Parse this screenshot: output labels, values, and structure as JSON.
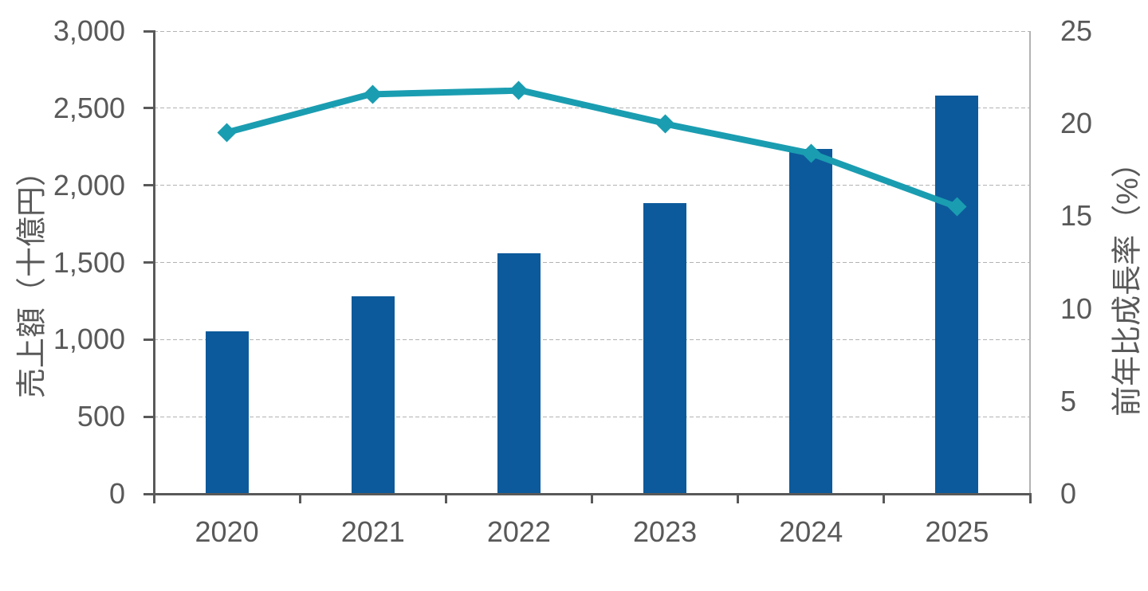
{
  "chart_data": {
    "type": "combo-bar-line",
    "title": "",
    "legend": "none",
    "background_color": "#FFFFFF",
    "categories": [
      "2020",
      "2021",
      "2022",
      "2023",
      "2024",
      "2025"
    ],
    "series": [
      {
        "name": "売上額",
        "type": "bar",
        "axis": "left",
        "color": "#0C5A9B",
        "values": [
          1055,
          1280,
          1560,
          1885,
          2235,
          2580
        ]
      },
      {
        "name": "前年比成長率",
        "type": "line",
        "axis": "right",
        "color": "#1A9DB1",
        "marker": "diamond",
        "values": [
          19.5,
          21.6,
          21.8,
          20.0,
          18.4,
          15.5
        ]
      }
    ],
    "left_axis": {
      "label": "売上額（十億円）",
      "min": 0,
      "max": 3000,
      "step": 500,
      "tick_labels": [
        "0",
        "500",
        "1,000",
        "1,500",
        "2,000",
        "2,500",
        "3,000"
      ]
    },
    "right_axis": {
      "label": "前年比成長率（%）",
      "min": 0,
      "max": 25,
      "step": 5,
      "tick_labels": [
        "0",
        "5",
        "10",
        "15",
        "20",
        "25"
      ]
    },
    "x_axis": {
      "tick_labels": [
        "2020",
        "2021",
        "2022",
        "2023",
        "2024",
        "2025"
      ]
    },
    "grid": {
      "horizontal": true,
      "style": "dashed",
      "color": "#B3B3B3"
    },
    "axis_color": "#595959",
    "tick_label_color": "#595959"
  }
}
